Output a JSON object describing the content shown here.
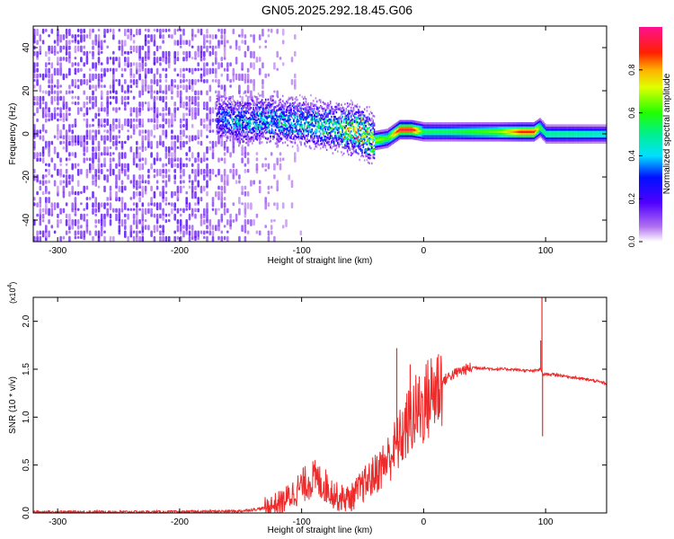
{
  "title": "GN05.2025.292.18.45.G06",
  "chart_data": [
    {
      "type": "heatmap",
      "xlabel": "Height of straight line (km)",
      "ylabel": "Frequency (Hz)",
      "xlim": [
        -320,
        150
      ],
      "ylim": [
        -50,
        50
      ],
      "xticks": [
        -300,
        -200,
        -100,
        0,
        100
      ],
      "xtick_labels": [
        "-300",
        "-200",
        "-100",
        "0",
        "100"
      ],
      "yticks": [
        -40,
        -20,
        0,
        20,
        40
      ],
      "ytick_labels": [
        "-40",
        "-20",
        "0",
        "20",
        "40"
      ],
      "colorbar": {
        "label": "Normalized spectral amplitude",
        "range": [
          0,
          1
        ],
        "ticks": [
          0.0,
          0.2,
          0.4,
          0.6,
          0.8
        ],
        "tick_labels": [
          "0.0",
          "0.2",
          "0.4",
          "0.6",
          "0.8"
        ]
      },
      "ridge": {
        "x": [
          -170,
          -150,
          -130,
          -110,
          -90,
          -70,
          -60,
          -50,
          -40,
          -30,
          -20,
          -10,
          0,
          20,
          40,
          60,
          80,
          90,
          95,
          100,
          120,
          150
        ],
        "freq_hz": [
          8,
          6,
          7,
          6,
          5,
          3,
          2,
          1,
          -3,
          -2,
          2,
          2,
          1,
          1,
          1,
          1,
          1,
          1,
          3,
          0,
          0,
          0
        ],
        "amplitude": [
          0.35,
          0.45,
          0.45,
          0.5,
          0.5,
          0.6,
          0.9,
          0.85,
          0.7,
          0.6,
          0.95,
          0.95,
          0.55,
          0.55,
          0.6,
          0.65,
          0.9,
          0.9,
          0.6,
          0.5,
          0.5,
          0.45
        ]
      },
      "noise_region_x": [
        -320,
        -130
      ],
      "grid": false,
      "legend": "none"
    },
    {
      "type": "line",
      "xlabel": "Height of straight line (km)",
      "ylabel": "SNR (10 * v/v)",
      "y_multiplier": "(x10",
      "y_multiplier_exp": "4",
      "y_multiplier_close": ")",
      "xlim": [
        -320,
        150
      ],
      "ylim": [
        0,
        2.25
      ],
      "xticks": [
        -300,
        -200,
        -100,
        0,
        100
      ],
      "xtick_labels": [
        "-300",
        "-200",
        "-100",
        "0",
        "100"
      ],
      "yticks": [
        0.0,
        0.5,
        1.0,
        1.5,
        2.0
      ],
      "ytick_labels": [
        "0.0",
        "0.5",
        "1.0",
        "1.5",
        "2.0"
      ],
      "color": "#ee2b2b",
      "x": [
        -320,
        -250,
        -200,
        -150,
        -130,
        -115,
        -100,
        -90,
        -80,
        -70,
        -60,
        -50,
        -40,
        -30,
        -20,
        -10,
        0,
        10,
        20,
        30,
        40,
        50,
        60,
        70,
        80,
        90,
        96,
        98,
        100,
        110,
        120,
        130,
        140,
        150
      ],
      "y": [
        0.01,
        0.01,
        0.01,
        0.02,
        0.05,
        0.12,
        0.28,
        0.36,
        0.28,
        0.16,
        0.15,
        0.28,
        0.4,
        0.55,
        0.75,
        1.0,
        1.12,
        1.3,
        1.42,
        1.48,
        1.52,
        1.51,
        1.5,
        1.5,
        1.49,
        1.48,
        1.5,
        1.44,
        1.45,
        1.44,
        1.42,
        1.4,
        1.38,
        1.35
      ],
      "spikes": [
        {
          "x": -22,
          "y": 1.72
        },
        {
          "x": -11,
          "y": 1.55
        },
        {
          "x": 97,
          "y": 2.25
        },
        {
          "x": 96,
          "y": 1.8
        },
        {
          "x": 97.5,
          "y": 0.8
        }
      ],
      "grid": false,
      "legend": "none"
    }
  ]
}
